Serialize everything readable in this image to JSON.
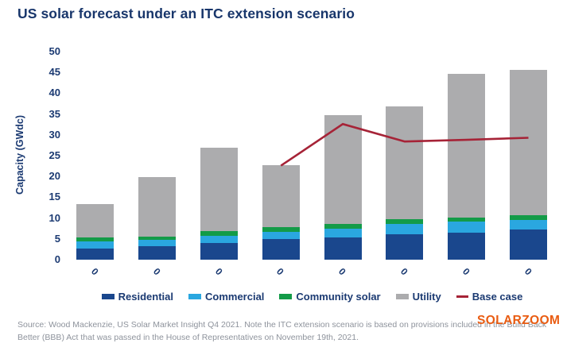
{
  "header": {
    "title": "US solar forecast under an ITC extension scenario"
  },
  "watermark": {
    "text": "SOLARZOOM",
    "color": "#e95c12"
  },
  "source": {
    "lines": [
      "Source: Wood Mackenzie, US Solar Market Insight Q4 2021. Note the ITC extension scenario is based on provisions included in the Build Back",
      "Better (BBB) Act that was passed in the House of Representatives on November 19th, 2021."
    ]
  },
  "chart_data": {
    "type": "bar",
    "stacked": true,
    "title": "US solar forecast under an ITC extension scenario",
    "ylabel": "Capacity (GWdc)",
    "xlabel": "",
    "ylim": [
      0,
      50
    ],
    "yticks": [
      0,
      5,
      10,
      15,
      20,
      25,
      30,
      35,
      40,
      45,
      50
    ],
    "grid": false,
    "legend_position": "bottom",
    "categories": [
      "0",
      "0",
      "0",
      "0",
      "0",
      "0",
      "0",
      "0"
    ],
    "series": [
      {
        "name": "Residential",
        "color": "#1a478d",
        "values": [
          2.6,
          3.2,
          4.0,
          5.0,
          5.4,
          6.1,
          6.5,
          7.2
        ]
      },
      {
        "name": "Commercial",
        "color": "#2aa7e0",
        "values": [
          1.7,
          1.5,
          1.8,
          1.7,
          2.1,
          2.5,
          2.6,
          2.4
        ]
      },
      {
        "name": "Community solar",
        "color": "#139b48",
        "values": [
          1.0,
          0.9,
          1.1,
          1.1,
          1.1,
          1.1,
          1.0,
          1.1
        ]
      },
      {
        "name": "Utility",
        "color": "#acacae",
        "values": [
          8.0,
          14.2,
          20.1,
          15.0,
          26.2,
          27.1,
          34.6,
          34.9
        ]
      }
    ],
    "totals": [
      13.3,
      19.8,
      27.0,
      22.8,
      34.8,
      36.8,
      44.7,
      45.6
    ],
    "line_series": {
      "name": "Base case",
      "color": "#a62337",
      "values": [
        null,
        null,
        null,
        22.6,
        32.6,
        28.4,
        28.8,
        29.3
      ]
    }
  }
}
